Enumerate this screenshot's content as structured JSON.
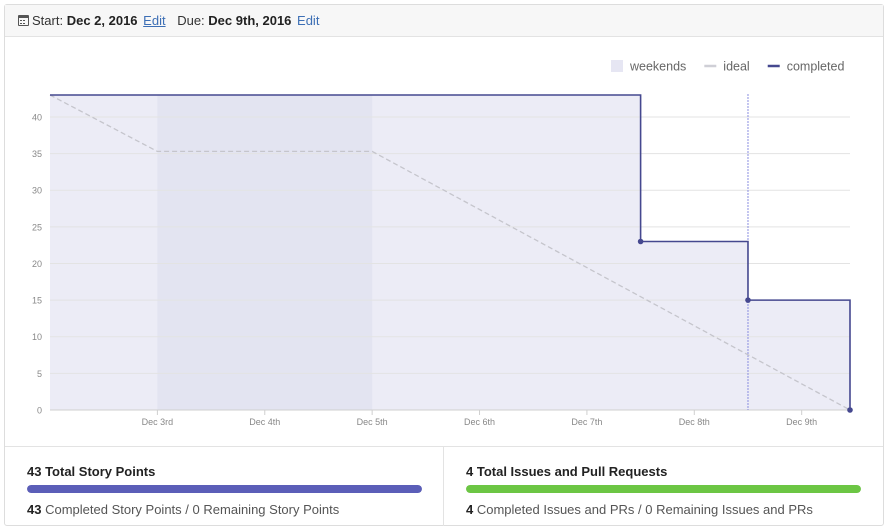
{
  "header": {
    "start_label": "Start:",
    "start_date": "Dec 2, 2016",
    "start_edit": "Edit",
    "due_label": "Due:",
    "due_date": "Dec 9th, 2016",
    "due_edit": "Edit"
  },
  "chart_data": {
    "type": "line",
    "title": "",
    "xlabel": "",
    "ylabel": "",
    "ylim": [
      0,
      43
    ],
    "y_ticks": [
      0,
      5,
      10,
      15,
      20,
      25,
      30,
      35,
      40
    ],
    "x_range": [
      2.0,
      9.45
    ],
    "x_ticks": [
      {
        "x": 3,
        "label": "Dec 3rd"
      },
      {
        "x": 4,
        "label": "Dec 4th"
      },
      {
        "x": 5,
        "label": "Dec 5th"
      },
      {
        "x": 6,
        "label": "Dec 6th"
      },
      {
        "x": 7,
        "label": "Dec 7th"
      },
      {
        "x": 8,
        "label": "Dec 8th"
      },
      {
        "x": 9,
        "label": "Dec 9th"
      }
    ],
    "legend": [
      {
        "name": "weekends",
        "kind": "area",
        "color": "#e6e6f3"
      },
      {
        "name": "ideal",
        "kind": "line",
        "color": "#cfcfd6"
      },
      {
        "name": "completed",
        "kind": "line",
        "color": "#45488f"
      }
    ],
    "weekends": [
      [
        3.0,
        5.0
      ]
    ],
    "ideal": [
      [
        2.0,
        43
      ],
      [
        3.0,
        35.3
      ],
      [
        5.0,
        35.3
      ],
      [
        9.45,
        0
      ]
    ],
    "completed": [
      [
        2.0,
        43
      ],
      [
        7.5,
        43
      ],
      [
        7.5,
        23
      ],
      [
        8.5,
        23
      ],
      [
        8.5,
        15
      ],
      [
        9.45,
        15
      ],
      [
        9.45,
        0
      ]
    ],
    "completed_markers": [
      [
        7.5,
        23
      ],
      [
        8.5,
        15
      ],
      [
        9.45,
        0
      ]
    ],
    "today_x": 8.5,
    "colors": {
      "area": "#ececf6",
      "weekend": "#e3e4f1",
      "grid": "#e3e3e3",
      "completed": "#45488f",
      "ideal": "#c5c5cc",
      "today": "#8a8ee0",
      "tick_text": "#888888",
      "legend_text": "#666666"
    }
  },
  "summary": {
    "points_title": "43 Total Story Points",
    "points_completed": "43",
    "points_completed_label": "Completed Story Points",
    "points_sep": "/",
    "points_remaining": "0 Remaining Story Points",
    "points_progress": 1.0,
    "points_color": "#5b5eb8",
    "issues_title": "4 Total Issues and Pull Requests",
    "issues_completed": "4",
    "issues_completed_label": "Completed Issues and PRs",
    "issues_sep": "/",
    "issues_remaining": "0 Remaining Issues and PRs",
    "issues_progress": 1.0,
    "issues_color": "#6cc644"
  }
}
